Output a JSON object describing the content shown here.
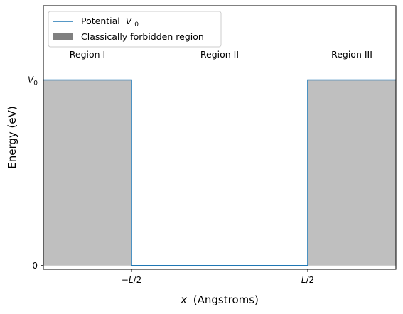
{
  "chart_data": {
    "type": "line",
    "xlabel_var": "x",
    "xlabel_unit": "(Angstroms)",
    "ylabel": "Energy (eV)",
    "xlim": [
      -1.0,
      1.0
    ],
    "ylim": [
      -0.02,
      1.4
    ],
    "x_ticks": [
      {
        "value": -0.5,
        "base": "−L",
        "suffix": "/2"
      },
      {
        "value": 0.5,
        "base": "L",
        "suffix": "/2"
      }
    ],
    "y_ticks": [
      {
        "value": 0,
        "label": "0",
        "sub": ""
      },
      {
        "value": 1,
        "label": "V",
        "sub": "0"
      }
    ],
    "series": [
      {
        "name": "Potential",
        "name_symbol": "V",
        "name_sub": "0",
        "color": "#1f77b4",
        "x": [
          -1.0,
          -0.5,
          -0.5,
          0.5,
          0.5,
          1.0
        ],
        "y": [
          1,
          1,
          0,
          0,
          1,
          1
        ]
      }
    ],
    "forbidden_regions": [
      {
        "x": [
          -1.0,
          -0.5
        ],
        "y": [
          0,
          1
        ]
      },
      {
        "x": [
          0.5,
          1.0
        ],
        "y": [
          0,
          1
        ]
      }
    ],
    "forbidden_region_name": "Classically forbidden region",
    "forbidden_region_color": "#808080",
    "forbidden_region_fill": "#bfbfbf",
    "region_labels": [
      {
        "text": "Region I",
        "x": -0.75,
        "y": 1.12
      },
      {
        "text": "Region II",
        "x": 0.0,
        "y": 1.12
      },
      {
        "text": "Region III",
        "x": 0.75,
        "y": 1.12
      }
    ],
    "legend_position": "upper-left",
    "grid": false
  }
}
